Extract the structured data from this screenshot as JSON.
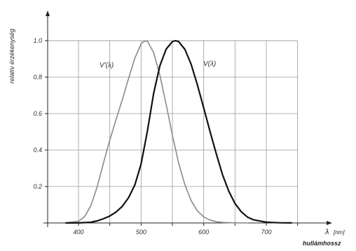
{
  "chart_data": {
    "type": "line",
    "title": "",
    "ylabel": "relatív érzékenység",
    "xlabel_symbol": "λ",
    "xlabel_unit": "[nm]",
    "xlabel_word": "hullámhossz",
    "xlim": [
      380,
      770
    ],
    "ylim": [
      0,
      1.1
    ],
    "x_ticks": [
      400,
      500,
      600,
      700
    ],
    "x_gridlines": [
      400,
      450,
      500,
      550,
      600,
      650,
      700,
      750
    ],
    "y_ticks": [
      0.2,
      0.4,
      0.6,
      0.8,
      1.0
    ],
    "y_tick_labels": [
      "0.2",
      "0.4",
      "0.6",
      "0.8",
      "1.0"
    ],
    "x_tick_labels": [
      "400",
      "500",
      "600",
      "700"
    ],
    "grid": true,
    "series": [
      {
        "name": "V'(λ)",
        "color": "#8a8a8a",
        "x": [
          380,
          400,
          410,
          420,
          430,
          440,
          450,
          460,
          470,
          480,
          490,
          500,
          505,
          510,
          520,
          530,
          540,
          550,
          560,
          570,
          580,
          590,
          600,
          610,
          620,
          630,
          640,
          650,
          660,
          670
        ],
        "values": [
          0.0006,
          0.0093,
          0.035,
          0.097,
          0.2,
          0.33,
          0.455,
          0.567,
          0.676,
          0.793,
          0.904,
          0.982,
          0.997,
          0.997,
          0.935,
          0.811,
          0.65,
          0.481,
          0.329,
          0.209,
          0.122,
          0.066,
          0.033,
          0.016,
          0.007,
          0.003,
          0.0015,
          0.0007,
          0.0003,
          0.0001
        ]
      },
      {
        "name": "V(λ)",
        "color": "#111111",
        "x": [
          380,
          400,
          420,
          430,
          440,
          450,
          460,
          470,
          480,
          490,
          500,
          510,
          520,
          530,
          540,
          550,
          555,
          560,
          570,
          580,
          590,
          600,
          610,
          620,
          630,
          640,
          650,
          660,
          670,
          680,
          700,
          720,
          740
        ],
        "values": [
          0.0,
          0.0004,
          0.004,
          0.0116,
          0.023,
          0.038,
          0.06,
          0.091,
          0.139,
          0.208,
          0.323,
          0.503,
          0.71,
          0.862,
          0.954,
          0.995,
          1.0,
          0.995,
          0.952,
          0.87,
          0.757,
          0.631,
          0.503,
          0.381,
          0.265,
          0.175,
          0.107,
          0.061,
          0.032,
          0.017,
          0.0041,
          0.001,
          0.0002
        ]
      }
    ]
  }
}
